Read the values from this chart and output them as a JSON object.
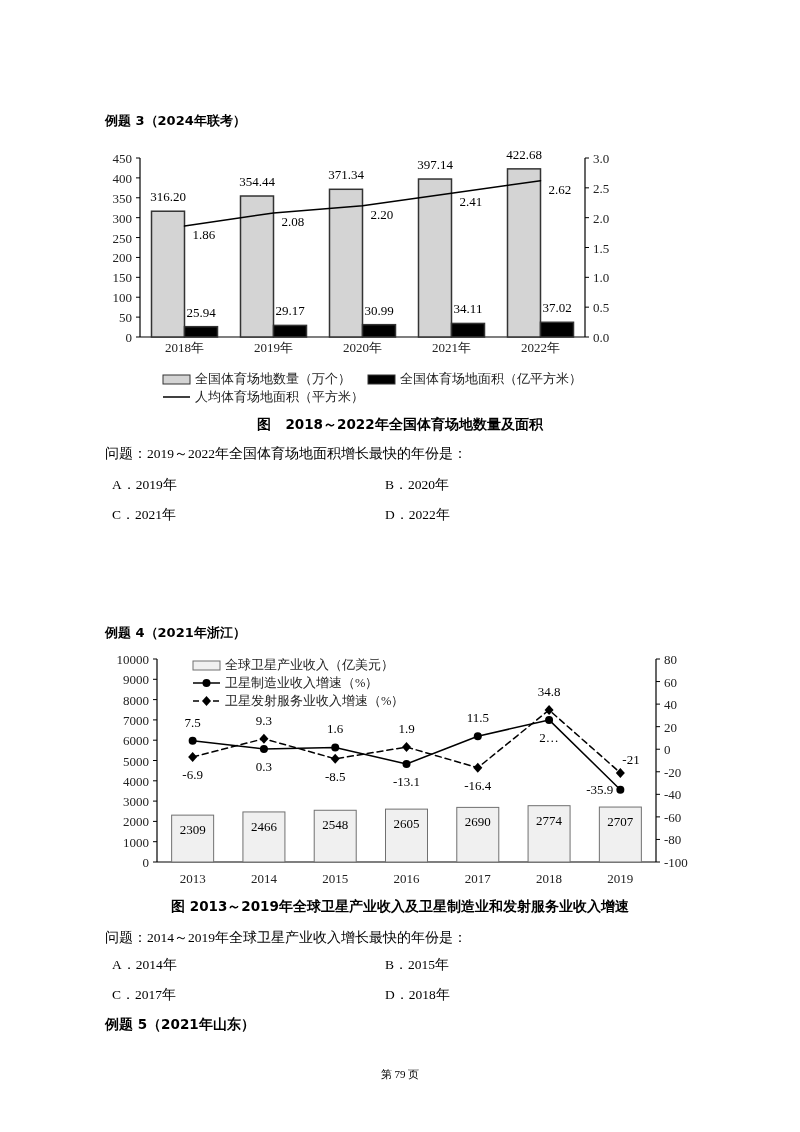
{
  "chart_data": [
    {
      "type": "bar",
      "title": "图　2018～2022年全国体育场地数量及面积",
      "categories": [
        "2018年",
        "2019年",
        "2020年",
        "2021年",
        "2022年"
      ],
      "series": [
        {
          "name": "全国体育场地数量（万个）",
          "color": "#d4d4d4",
          "values": [
            316.2,
            354.44,
            371.34,
            397.14,
            422.68
          ],
          "value_labels": [
            "316.20",
            "354.44",
            "371.34",
            "397.14",
            "422.68"
          ]
        },
        {
          "name": "全国体育场地面积（亿平方米）",
          "color": "#000000",
          "values": [
            25.94,
            29.17,
            30.99,
            34.11,
            37.02
          ],
          "value_labels": [
            "25.94",
            "29.17",
            "30.99",
            "34.11",
            "37.02"
          ]
        },
        {
          "name": "人均体育场地面积（平方米）",
          "type": "line",
          "axis": "y2",
          "color": "#000000",
          "line_style": "solid",
          "values": [
            1.86,
            2.08,
            2.2,
            2.41,
            2.62
          ],
          "value_labels": [
            "1.86",
            "2.08",
            "2.20",
            "2.41",
            "2.62"
          ]
        }
      ],
      "ylim": [
        0,
        450
      ],
      "yticks": [
        0,
        50,
        100,
        150,
        200,
        250,
        300,
        350,
        400,
        450
      ],
      "y2lim": [
        0,
        3
      ],
      "y2ticks": [
        {
          "value": 0,
          "label": "0.0"
        },
        {
          "value": 0.5,
          "label": "0.5"
        },
        {
          "value": 1,
          "label": "1.0"
        },
        {
          "value": 1.5,
          "label": "1.5"
        },
        {
          "value": 2,
          "label": "2.0"
        },
        {
          "value": 2.5,
          "label": "2.5"
        },
        {
          "value": 3,
          "label": "3.0"
        }
      ],
      "legend": "bottom",
      "annotations": [
        "例题 3（2024年联考）",
        "问题：2019～2022年全国体育场地面积增长最快的年份是：",
        "A．2019年",
        "B．2020年",
        "C．2021年",
        "D．2022年"
      ]
    },
    {
      "type": "bar",
      "title": "图 2013～2019年全球卫星产业收入及卫星制造业和发射服务业收入增速",
      "categories": [
        "2013",
        "2014",
        "2015",
        "2016",
        "2017",
        "2018",
        "2019"
      ],
      "series": [
        {
          "name": "全球卫星产业收入（亿美元）",
          "color": "#f0f0f0",
          "values": [
            2309,
            2466,
            2548,
            2605,
            2690,
            2774,
            2707
          ],
          "value_labels": [
            "2309",
            "2466",
            "2548",
            "2605",
            "2690",
            "2774",
            "2707"
          ]
        },
        {
          "name": "卫星制造业收入增速（%）",
          "type": "line",
          "axis": "y2",
          "color": "#000000",
          "marker": "circle",
          "line_style": "solid",
          "values": [
            7.5,
            0.3,
            1.6,
            -13.1,
            11.5,
            26,
            -35.9
          ],
          "value_labels": [
            "7.5",
            "0.3",
            "1.6",
            "-13.1",
            "11.5",
            "2…",
            "-35.9"
          ]
        },
        {
          "name": "卫星发射服务业收入增速（%）",
          "type": "line",
          "axis": "y2",
          "color": "#000000",
          "marker": "diamond",
          "line_style": "dashed",
          "values": [
            -6.9,
            9.3,
            -8.5,
            1.9,
            -16.4,
            34.8,
            -21
          ],
          "value_labels": [
            "-6.9",
            "9.3",
            "-8.5",
            "1.9",
            "-16.4",
            "34.8",
            "-21"
          ]
        }
      ],
      "ylim": [
        0,
        10000
      ],
      "yticks": [
        0,
        1000,
        2000,
        3000,
        4000,
        5000,
        6000,
        7000,
        8000,
        9000,
        10000
      ],
      "y2lim": [
        -100,
        80
      ],
      "y2ticks": [
        -100,
        -80,
        -60,
        -40,
        -20,
        0,
        20,
        40,
        60,
        80
      ],
      "legend": "top left",
      "annotations": [
        "例题 4（2021年浙江）",
        "问题：2014～2019年全球卫星产业收入增长最快的年份是：",
        "A．2014年",
        "B．2015年",
        "C．2017年",
        "D．2018年",
        "例题 5（2021年山东）",
        "第 79 页"
      ]
    }
  ]
}
